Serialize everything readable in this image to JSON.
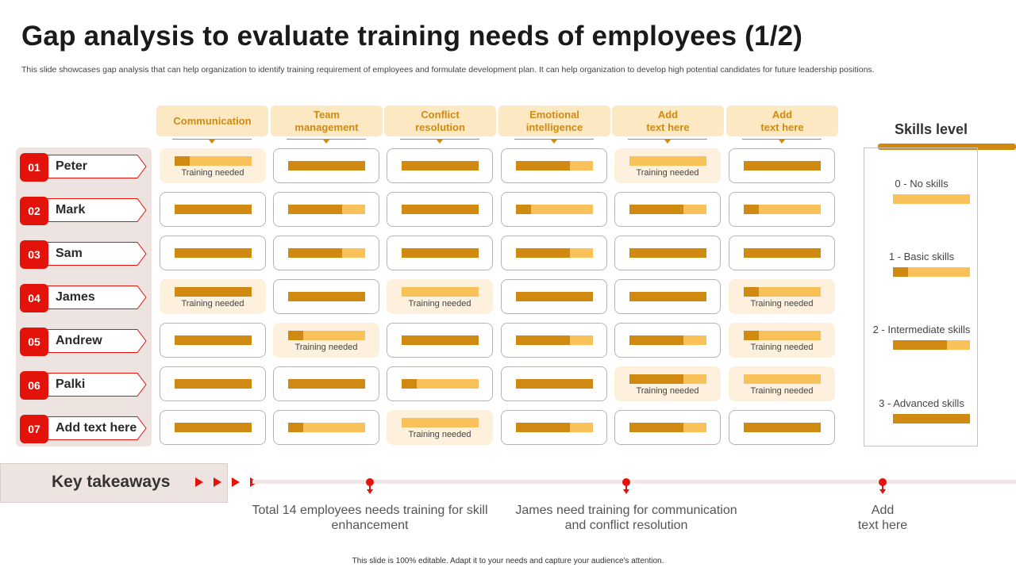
{
  "title": "Gap analysis to evaluate training needs of employees (1/2)",
  "description": "This slide showcases gap analysis that can help organization to identify training requirement of employees and formulate development plan. It can help organization to develop high potential candidates for future leadership positions.",
  "columns": [
    "Communication",
    "Team\nmanagement",
    "Conflict\nresolution",
    "Emotional\nintelligence",
    "Add\ntext here",
    "Add\ntext here"
  ],
  "training_label": "Training needed",
  "employees": [
    {
      "num": "01",
      "name": "Peter"
    },
    {
      "num": "02",
      "name": "Mark"
    },
    {
      "num": "03",
      "name": "Sam"
    },
    {
      "num": "04",
      "name": "James"
    },
    {
      "num": "05",
      "name": "Andrew"
    },
    {
      "num": "06",
      "name": "Palki"
    },
    {
      "num": "07",
      "name": "Add text here"
    }
  ],
  "skill_grid": [
    [
      {
        "level": 1,
        "need": true
      },
      {
        "level": 3,
        "need": false
      },
      {
        "level": 3,
        "need": false
      },
      {
        "level": 2,
        "need": false
      },
      {
        "level": 0,
        "need": true
      },
      {
        "level": 3,
        "need": false
      }
    ],
    [
      {
        "level": 3,
        "need": false
      },
      {
        "level": 2,
        "need": false
      },
      {
        "level": 3,
        "need": false
      },
      {
        "level": 1,
        "need": false
      },
      {
        "level": 2,
        "need": false
      },
      {
        "level": 1,
        "need": false
      }
    ],
    [
      {
        "level": 3,
        "need": false
      },
      {
        "level": 2,
        "need": false
      },
      {
        "level": 3,
        "need": false
      },
      {
        "level": 2,
        "need": false
      },
      {
        "level": 3,
        "need": false
      },
      {
        "level": 3,
        "need": false
      }
    ],
    [
      {
        "level": 3,
        "need": true
      },
      {
        "level": 3,
        "need": false
      },
      {
        "level": 0,
        "need": true
      },
      {
        "level": 3,
        "need": false
      },
      {
        "level": 3,
        "need": false
      },
      {
        "level": 1,
        "need": true
      }
    ],
    [
      {
        "level": 3,
        "need": false
      },
      {
        "level": 1,
        "need": true
      },
      {
        "level": 3,
        "need": false
      },
      {
        "level": 2,
        "need": false
      },
      {
        "level": 2,
        "need": false
      },
      {
        "level": 1,
        "need": true
      }
    ],
    [
      {
        "level": 3,
        "need": false
      },
      {
        "level": 3,
        "need": false
      },
      {
        "level": 1,
        "need": false
      },
      {
        "level": 3,
        "need": false
      },
      {
        "level": 2,
        "need": true
      },
      {
        "level": 0,
        "need": true
      }
    ],
    [
      {
        "level": 3,
        "need": false
      },
      {
        "level": 1,
        "need": false
      },
      {
        "level": 0,
        "need": true
      },
      {
        "level": 2,
        "need": false
      },
      {
        "level": 2,
        "need": false
      },
      {
        "level": 3,
        "need": false
      }
    ]
  ],
  "level_fractions": [
    0,
    0.2,
    0.7,
    1.0
  ],
  "skills_legend": {
    "title": "Skills level",
    "levels": [
      {
        "label": "0 - No skills",
        "level": 0
      },
      {
        "label": "1 - Basic skills",
        "level": 1
      },
      {
        "label": "2 - Intermediate  skills",
        "level": 2
      },
      {
        "label": "3 - Advanced  skills",
        "level": 3
      }
    ]
  },
  "key_takeaways": {
    "title": "Key takeaways",
    "items": [
      "Total 14 employees needs training for skill enhancement",
      "James need training for communication and conflict resolution",
      "Add\ntext here"
    ]
  },
  "footer": "This slide is 100% editable. Adapt it to your needs and capture your audience's attention.",
  "colors": {
    "accent": "#d08a12",
    "light": "#f9c15a",
    "red": "#e3120b",
    "highlight": "#fdf0dc"
  }
}
